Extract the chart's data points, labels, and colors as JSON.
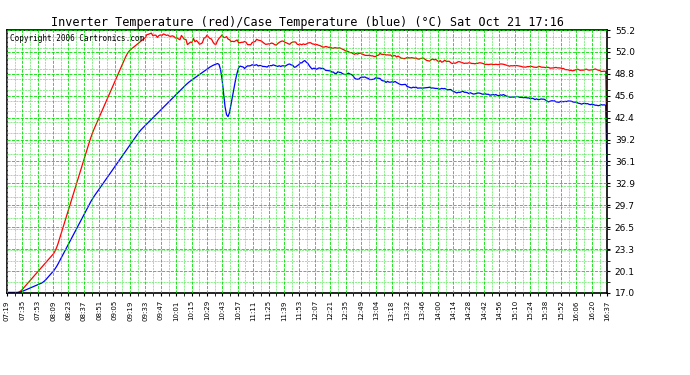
{
  "title": "Inverter Temperature (red)/Case Temperature (blue) (°C) Sat Oct 21 17:16",
  "copyright": "Copyright 2006 Cartronics.com",
  "ylabel_values": [
    17.0,
    20.1,
    23.3,
    26.5,
    29.7,
    32.9,
    36.1,
    39.2,
    42.4,
    45.6,
    48.8,
    52.0,
    55.2
  ],
  "ylim": [
    17.0,
    55.2
  ],
  "x_labels": [
    "07:19",
    "07:35",
    "07:53",
    "08:09",
    "08:23",
    "08:37",
    "08:51",
    "09:05",
    "09:19",
    "09:33",
    "09:47",
    "10:01",
    "10:15",
    "10:29",
    "10:43",
    "10:57",
    "11:11",
    "11:25",
    "11:39",
    "11:53",
    "12:07",
    "12:21",
    "12:35",
    "12:49",
    "13:04",
    "13:18",
    "13:32",
    "13:46",
    "14:00",
    "14:14",
    "14:28",
    "14:42",
    "14:56",
    "15:10",
    "15:24",
    "15:38",
    "15:52",
    "16:06",
    "16:20",
    "16:37"
  ],
  "background_color": "#ffffff",
  "plot_bg_color": "#ffffff",
  "grid_color": "#00dd00",
  "title_color": "#000000",
  "line_red_color": "#ff0000",
  "line_blue_color": "#0000ff",
  "border_color": "#000000",
  "figsize": [
    6.9,
    3.75
  ],
  "dpi": 100
}
